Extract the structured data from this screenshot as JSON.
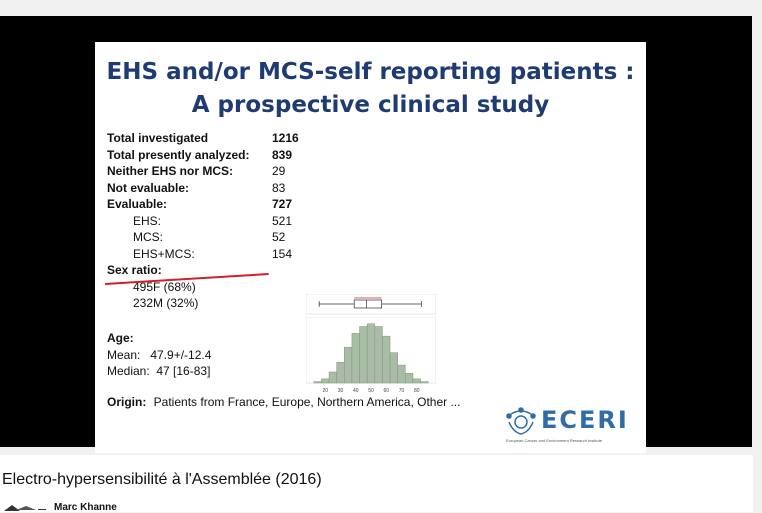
{
  "slide": {
    "title_line1": "EHS and/or MCS-self reporting patients :",
    "title_line2": "A prospective clinical study",
    "stats": [
      {
        "label": "Total investigated",
        "value": "1216",
        "bold_value": true
      },
      {
        "label": "Total presently analyzed:",
        "value": "839",
        "bold_value": true
      },
      {
        "label": "Neither EHS nor MCS:",
        "value": "29",
        "bold_value": false
      },
      {
        "label": "Not evaluable:",
        "value": "83",
        "bold_value": false
      },
      {
        "label": "Evaluable:",
        "value": "727",
        "bold_value": true
      }
    ],
    "sub_stats": [
      {
        "label": "EHS:",
        "value": "521"
      },
      {
        "label": "MCS:",
        "value": "52"
      },
      {
        "label": "EHS+MCS:",
        "value": "154"
      }
    ],
    "sex_ratio_label": "Sex ratio:",
    "sex_female": "495F (68%)",
    "sex_male": "232M (32%)",
    "age_label": "Age:",
    "age_mean": "Mean:   47.9+/-12.4",
    "age_median": "Median:  47 [16-83]",
    "origin_label": "Origin:",
    "origin_text": "Patients from France, Europe, Northern America, Other ...",
    "logo_text": "ECERI",
    "logo_subtitle": "European Cancer and Environment Research Institute"
  },
  "chart_data": {
    "type": "bar",
    "x_ticks": [
      "20",
      "30",
      "40",
      "50",
      "60",
      "70",
      "80"
    ],
    "bins": [
      15,
      20,
      25,
      30,
      35,
      40,
      45,
      50,
      55,
      60,
      65,
      70,
      75,
      80,
      85
    ],
    "values": [
      1,
      3,
      8,
      15,
      26,
      36,
      41,
      43,
      41,
      34,
      22,
      13,
      7,
      3,
      1
    ],
    "boxplot": {
      "min": 16,
      "q1": 39,
      "median": 47,
      "q3": 57,
      "max": 83
    },
    "bar_color": "#a9bda6"
  },
  "video": {
    "title": "Electro-hypersensibilité à l'Assemblée (2016)",
    "channel": "Marc Khanne"
  }
}
